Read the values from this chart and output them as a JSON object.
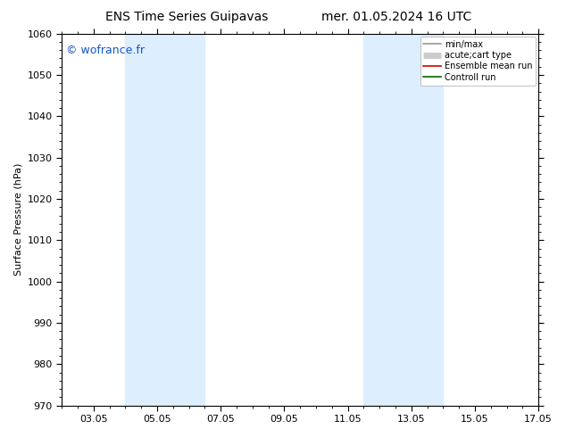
{
  "title_left": "ENS Time Series Guipavas",
  "title_right": "mer. 01.05.2024 16 UTC",
  "ylabel": "Surface Pressure (hPa)",
  "ylim": [
    970,
    1060
  ],
  "yticks": [
    970,
    980,
    990,
    1000,
    1010,
    1020,
    1030,
    1040,
    1050,
    1060
  ],
  "xlim_start": 1.0,
  "xlim_end": 16.0,
  "xtick_positions": [
    2,
    4,
    6,
    8,
    10,
    12,
    14,
    16
  ],
  "xtick_labels": [
    "03.05",
    "05.05",
    "07.05",
    "09.05",
    "11.05",
    "13.05",
    "15.05",
    "17.05"
  ],
  "shaded_bands": [
    {
      "xmin": 3.0,
      "xmax": 5.5
    },
    {
      "xmin": 10.5,
      "xmax": 13.0
    }
  ],
  "band_color": "#ddeeff",
  "background_color": "#ffffff",
  "watermark": "© wofrance.fr",
  "watermark_color": "#1155cc",
  "legend_items": [
    {
      "label": "min/max",
      "color": "#999999",
      "lw": 1.2,
      "ls": "-"
    },
    {
      "label": "acute;cart type",
      "color": "#cccccc",
      "lw": 5,
      "ls": "-"
    },
    {
      "label": "Ensemble mean run",
      "color": "#cc0000",
      "lw": 1.2,
      "ls": "-"
    },
    {
      "label": "Controll run",
      "color": "#006600",
      "lw": 1.2,
      "ls": "-"
    }
  ],
  "title_fontsize": 10,
  "axis_label_fontsize": 8,
  "tick_fontsize": 8,
  "legend_fontsize": 7,
  "watermark_fontsize": 9,
  "fig_width": 6.34,
  "fig_height": 4.9,
  "dpi": 100
}
